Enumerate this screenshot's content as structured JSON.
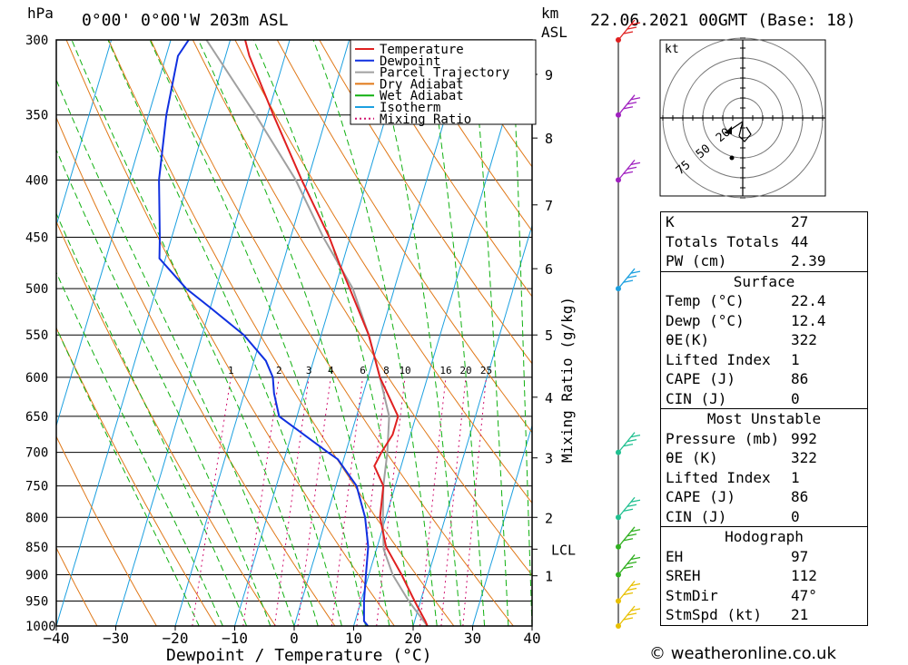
{
  "header": {
    "hpa_label": "hPa",
    "location": "0°00' 0°00'W 203m ASL",
    "km_label": "km",
    "asl_label": "ASL",
    "date": "22.06.2021 00GMT (Base: 18)"
  },
  "chart_data": {
    "type": "skew-t",
    "xlabel": "Dewpoint / Temperature (°C)",
    "ylabel_right": "Mixing Ratio (g/kg)",
    "xlim": [
      -40,
      40
    ],
    "pressure_range_hpa": [
      1000,
      300
    ],
    "pressure_ticks": [
      300,
      350,
      400,
      450,
      500,
      550,
      600,
      650,
      700,
      750,
      800,
      850,
      900,
      950,
      1000
    ],
    "temperature_ticks": [
      -40,
      -30,
      -20,
      -10,
      0,
      10,
      20,
      30,
      40
    ],
    "height_km_ticks": [
      {
        "label": "9",
        "p": 322
      },
      {
        "label": "8",
        "p": 367
      },
      {
        "label": "7",
        "p": 421
      },
      {
        "label": "6",
        "p": 480
      },
      {
        "label": "5",
        "p": 550
      },
      {
        "label": "4",
        "p": 625
      },
      {
        "label": "3",
        "p": 708
      },
      {
        "label": "2",
        "p": 800
      },
      {
        "label": "LCL",
        "p": 854
      },
      {
        "label": "1",
        "p": 902
      }
    ],
    "mixing_ratio_labels": [
      "1",
      "2",
      "3",
      "4",
      "6",
      "8",
      "10",
      "16",
      "20",
      "25"
    ],
    "mixing_ratio_values": [
      1,
      2,
      3,
      4,
      6,
      8,
      10,
      16,
      20,
      25
    ],
    "legend": [
      "Temperature",
      "Dewpoint",
      "Parcel Trajectory",
      "Dry Adiabat",
      "Wet Adiabat",
      "Isotherm",
      "Mixing Ratio"
    ],
    "legend_position": "top-right",
    "colors": {
      "temperature": "#e02020",
      "dewpoint": "#1030e0",
      "parcel": "#a0a0a0",
      "dry_adiabat": "#e07818",
      "wet_adiabat": "#10b010",
      "isotherm": "#1ca0e0",
      "mixing_ratio": "#d0106e"
    },
    "series": [
      {
        "name": "Temperature",
        "points": [
          [
            1000,
            22.4
          ],
          [
            990,
            21.8
          ],
          [
            950,
            19
          ],
          [
            900,
            15.5
          ],
          [
            850,
            11.5
          ],
          [
            800,
            9
          ],
          [
            750,
            8
          ],
          [
            720,
            5.5
          ],
          [
            700,
            6
          ],
          [
            675,
            7
          ],
          [
            650,
            7
          ],
          [
            600,
            2
          ],
          [
            550,
            -2
          ],
          [
            500,
            -7.5
          ],
          [
            475,
            -10.5
          ],
          [
            450,
            -13.5
          ],
          [
            400,
            -21
          ],
          [
            350,
            -29
          ],
          [
            310,
            -36
          ],
          [
            300,
            -37.5
          ]
        ]
      },
      {
        "name": "Dewpoint",
        "points": [
          [
            1000,
            12.4
          ],
          [
            990,
            11.5
          ],
          [
            950,
            10.5
          ],
          [
            900,
            9.5
          ],
          [
            850,
            8.5
          ],
          [
            800,
            6.5
          ],
          [
            750,
            3.5
          ],
          [
            710,
            -1
          ],
          [
            700,
            -3
          ],
          [
            650,
            -13
          ],
          [
            620,
            -15
          ],
          [
            600,
            -16
          ],
          [
            580,
            -18
          ],
          [
            550,
            -23
          ],
          [
            520,
            -30
          ],
          [
            500,
            -35
          ],
          [
            470,
            -41
          ],
          [
            450,
            -42
          ],
          [
            400,
            -45
          ],
          [
            350,
            -47
          ],
          [
            310,
            -48
          ],
          [
            300,
            -47
          ]
        ]
      },
      {
        "name": "Parcel Trajectory",
        "points": [
          [
            1000,
            22.4
          ],
          [
            950,
            18
          ],
          [
            900,
            14
          ],
          [
            854,
            11.2
          ],
          [
            800,
            9.5
          ],
          [
            750,
            8
          ],
          [
            700,
            7
          ],
          [
            650,
            5.5
          ],
          [
            600,
            2
          ],
          [
            550,
            -2
          ],
          [
            500,
            -7
          ],
          [
            450,
            -14.5
          ],
          [
            400,
            -22
          ],
          [
            350,
            -32
          ],
          [
            300,
            -44
          ]
        ]
      }
    ],
    "wind_barbs": [
      {
        "p": 1000,
        "color": "#e8c000"
      },
      {
        "p": 950,
        "color": "#e8c000"
      },
      {
        "p": 900,
        "color": "#30b020"
      },
      {
        "p": 850,
        "color": "#30b020"
      },
      {
        "p": 800,
        "color": "#20c090"
      },
      {
        "p": 700,
        "color": "#20c090"
      },
      {
        "p": 500,
        "color": "#1ca0e0"
      },
      {
        "p": 400,
        "color": "#a020c0"
      },
      {
        "p": 350,
        "color": "#a020c0"
      },
      {
        "p": 300,
        "color": "#e02020"
      }
    ],
    "hodograph": {
      "units_label": "kt",
      "ring_labels": [
        "20",
        "50",
        "75"
      ]
    }
  },
  "stats": {
    "general": [
      {
        "label": "K",
        "value": "27"
      },
      {
        "label": "Totals Totals",
        "value": "44"
      },
      {
        "label": "PW (cm)",
        "value": "2.39"
      }
    ],
    "surface_title": "Surface",
    "surface": [
      {
        "label": "Temp (°C)",
        "value": "22.4"
      },
      {
        "label": "Dewp (°C)",
        "value": "12.4"
      },
      {
        "label": "θE(K)",
        "value": "322"
      },
      {
        "label": "Lifted Index",
        "value": "1"
      },
      {
        "label": "CAPE (J)",
        "value": "86"
      },
      {
        "label": "CIN (J)",
        "value": "0"
      }
    ],
    "unstable_title": "Most Unstable",
    "unstable": [
      {
        "label": "Pressure (mb)",
        "value": "992"
      },
      {
        "label": "θE (K)",
        "value": "322"
      },
      {
        "label": "Lifted Index",
        "value": "1"
      },
      {
        "label": "CAPE (J)",
        "value": "86"
      },
      {
        "label": "CIN (J)",
        "value": "0"
      }
    ],
    "hodo_title": "Hodograph",
    "hodo": [
      {
        "label": "EH",
        "value": "97"
      },
      {
        "label": "SREH",
        "value": "112"
      },
      {
        "label": "StmDir",
        "value": "47°"
      },
      {
        "label": "StmSpd (kt)",
        "value": "21"
      }
    ]
  },
  "footer": {
    "credit": "© weatheronline.co.uk"
  }
}
